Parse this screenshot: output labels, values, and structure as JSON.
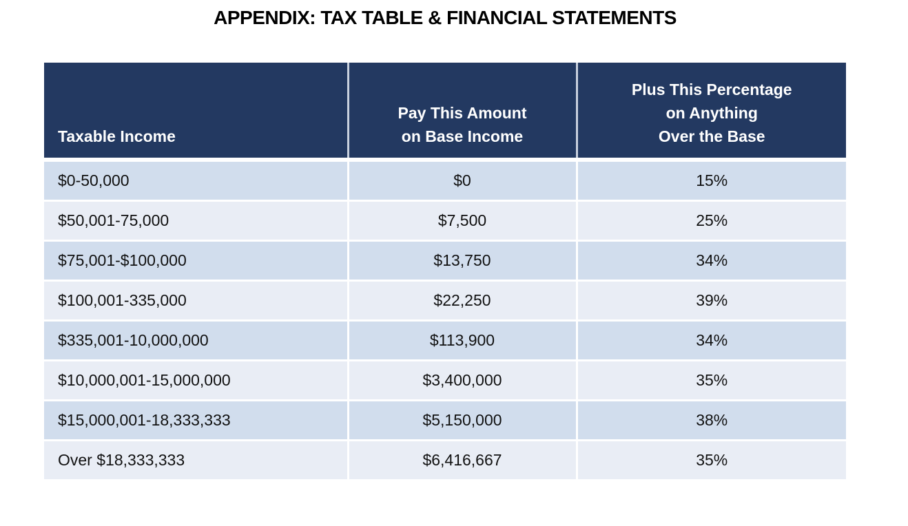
{
  "title": "APPENDIX: TAX TABLE & FINANCIAL STATEMENTS",
  "table": {
    "headers": [
      "Taxable Income",
      "Pay This Amount\non Base Income",
      "Plus This Percentage\non Anything\nOver the Base"
    ],
    "rows": [
      [
        "$0-50,000",
        "$0",
        "15%"
      ],
      [
        "$50,001-75,000",
        "$7,500",
        "25%"
      ],
      [
        "$75,001-$100,000",
        "$13,750",
        "34%"
      ],
      [
        "$100,001-335,000",
        "$22,250",
        "39%"
      ],
      [
        "$335,001-10,000,000",
        "$113,900",
        "34%"
      ],
      [
        "$10,000,001-15,000,000",
        "$3,400,000",
        "35%"
      ],
      [
        "$15,000,001-18,333,333",
        "$5,150,000",
        "38%"
      ],
      [
        "Over $18,333,333",
        "$6,416,667",
        "35%"
      ]
    ]
  },
  "colors": {
    "header_bg": "#233961",
    "row_odd": "#d1dded",
    "row_even": "#e9edf5"
  }
}
